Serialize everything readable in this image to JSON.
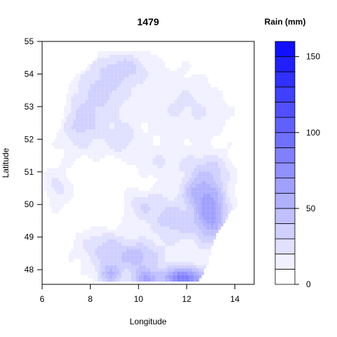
{
  "chart_data": {
    "type": "heatmap",
    "title": "1479",
    "xlabel": "Longitude",
    "ylabel": "Latitude",
    "xlim": [
      6,
      14.8
    ],
    "ylim": [
      47.55,
      55
    ],
    "x_ticks": [
      6,
      8,
      10,
      12,
      14
    ],
    "y_ticks": [
      48,
      49,
      50,
      51,
      52,
      53,
      54,
      55
    ],
    "grid": false,
    "legend": {
      "title": "Rain (mm)",
      "position": "right",
      "range": [
        0,
        160
      ],
      "levels": [
        0,
        10,
        20,
        30,
        40,
        50,
        60,
        70,
        80,
        90,
        100,
        110,
        120,
        130,
        140,
        150,
        160
      ],
      "ticks": [
        0,
        50,
        100,
        150
      ],
      "colors": [
        "#ffffff",
        "#f0f0ff",
        "#e0e0ff",
        "#d0d0ff",
        "#c0c0ff",
        "#b0b0ff",
        "#a0a0ff",
        "#9090ff",
        "#8080ff",
        "#7070ff",
        "#6060ff",
        "#5050ff",
        "#4040ff",
        "#3030ff",
        "#2020ff",
        "#1010ff"
      ]
    },
    "domain_outline": [
      [
        8.4,
        54.75
      ],
      [
        10.1,
        54.75
      ],
      [
        11.4,
        54.72
      ],
      [
        12.3,
        54.72
      ],
      [
        13.7,
        54.72
      ],
      [
        13.9,
        54.45
      ],
      [
        14.05,
        54.1
      ],
      [
        14.15,
        53.55
      ],
      [
        14.25,
        53.0
      ],
      [
        14.55,
        52.65
      ],
      [
        14.6,
        52.2
      ],
      [
        14.7,
        51.55
      ],
      [
        14.78,
        51.0
      ],
      [
        14.8,
        50.4
      ],
      [
        14.4,
        50.2
      ],
      [
        13.8,
        49.75
      ],
      [
        13.3,
        49.2
      ],
      [
        13.0,
        48.65
      ],
      [
        12.9,
        48.2
      ],
      [
        12.5,
        47.7
      ],
      [
        11.6,
        47.6
      ],
      [
        10.5,
        47.6
      ],
      [
        9.6,
        47.62
      ],
      [
        8.8,
        47.68
      ],
      [
        7.7,
        47.55
      ],
      [
        7.3,
        47.8
      ],
      [
        7.1,
        48.4
      ],
      [
        7.2,
        49.1
      ],
      [
        6.5,
        49.5
      ],
      [
        6.25,
        50.2
      ],
      [
        6.0,
        50.8
      ],
      [
        6.05,
        51.4
      ],
      [
        6.3,
        51.9
      ],
      [
        6.8,
        52.4
      ],
      [
        7.0,
        53.2
      ],
      [
        7.1,
        53.7
      ],
      [
        7.5,
        54.0
      ],
      [
        8.2,
        54.4
      ]
    ],
    "rain_fields": [
      {
        "x": 11.5,
        "y": 53.3,
        "sx": 1.4,
        "sy": 0.9,
        "v": 12
      },
      {
        "x": 12.5,
        "y": 52.7,
        "sx": 1.3,
        "sy": 0.8,
        "v": 10
      },
      {
        "x": 8.5,
        "y": 53.5,
        "sx": 1.1,
        "sy": 0.9,
        "v": 28
      },
      {
        "x": 9.5,
        "y": 54.2,
        "sx": 1.0,
        "sy": 0.5,
        "v": 24
      },
      {
        "x": 7.6,
        "y": 52.4,
        "sx": 0.8,
        "sy": 0.8,
        "v": 26
      },
      {
        "x": 9.3,
        "y": 52.0,
        "sx": 0.8,
        "sy": 0.6,
        "v": 20
      },
      {
        "x": 11.0,
        "y": 51.3,
        "sx": 1.0,
        "sy": 0.6,
        "v": 14
      },
      {
        "x": 12.8,
        "y": 51.1,
        "sx": 1.0,
        "sy": 0.5,
        "v": 22
      },
      {
        "x": 6.6,
        "y": 50.5,
        "sx": 0.6,
        "sy": 0.6,
        "v": 18
      },
      {
        "x": 10.2,
        "y": 50.0,
        "sx": 0.8,
        "sy": 0.6,
        "v": 22
      },
      {
        "x": 11.5,
        "y": 49.5,
        "sx": 0.9,
        "sy": 0.7,
        "v": 30
      },
      {
        "x": 13.0,
        "y": 49.8,
        "sx": 0.7,
        "sy": 1.0,
        "v": 62
      },
      {
        "x": 12.3,
        "y": 50.4,
        "sx": 0.5,
        "sy": 0.4,
        "v": 28
      },
      {
        "x": 8.5,
        "y": 48.7,
        "sx": 1.0,
        "sy": 0.6,
        "v": 26
      },
      {
        "x": 10.0,
        "y": 48.4,
        "sx": 1.0,
        "sy": 0.5,
        "v": 38
      },
      {
        "x": 11.9,
        "y": 47.75,
        "sx": 0.9,
        "sy": 0.35,
        "v": 82
      },
      {
        "x": 10.3,
        "y": 47.7,
        "sx": 0.6,
        "sy": 0.3,
        "v": 48
      },
      {
        "x": 8.8,
        "y": 47.85,
        "sx": 0.5,
        "sy": 0.35,
        "v": 40
      }
    ],
    "dry_areas": [
      {
        "x": 8.4,
        "y": 50.1,
        "sx": 0.7,
        "sy": 0.8
      },
      {
        "x": 9.2,
        "y": 50.9,
        "sx": 0.5,
        "sy": 0.4
      },
      {
        "x": 10.3,
        "y": 50.6,
        "sx": 0.4,
        "sy": 0.3
      }
    ]
  }
}
